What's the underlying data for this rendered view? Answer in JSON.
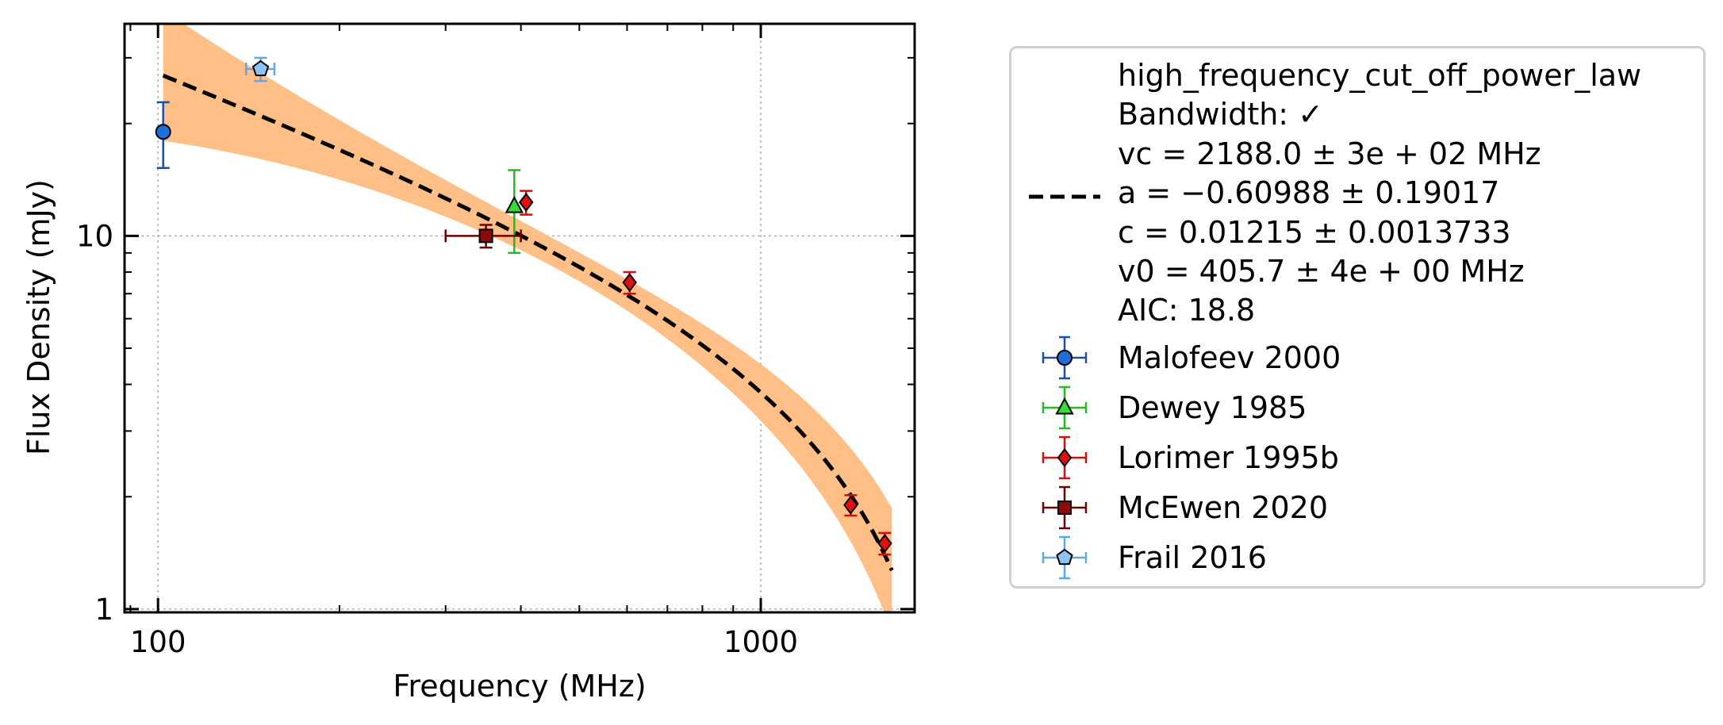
{
  "chart_data": {
    "type": "scatter",
    "xlabel": "Frequency (MHz)",
    "ylabel": "Flux Density (mJy)",
    "xscale": "log",
    "yscale": "log",
    "xlim": [
      88,
      1800
    ],
    "ylim": [
      0.98,
      37
    ],
    "xticks": [
      {
        "value": 100,
        "label": "100"
      },
      {
        "value": 1000,
        "label": "1000"
      }
    ],
    "yticks": [
      {
        "value": 1,
        "label": "1"
      },
      {
        "value": 10,
        "label": "10"
      }
    ],
    "grid": true,
    "legend_position": "outside-right",
    "fit": {
      "model": "high_frequency_cut_off_power_law",
      "lines": [
        "high_frequency_cut_off_power_law",
        "Bandwidth: ✓",
        "vc = 2188.0 ± 3e + 02 MHz",
        "a = −0.60988 ± 0.19017",
        "c = 0.01215 ± 0.0013733",
        "v0 = 405.7 ± 4e + 00 MHz",
        "AIC: 18.8"
      ],
      "params": {
        "vc": 2188.0,
        "a": -0.60988,
        "c": 0.01215,
        "v0": 405.7
      },
      "x_range": [
        102,
        1650
      ],
      "line_color": "#000000",
      "band_color": "#ffbf86"
    },
    "series": [
      {
        "name": "Malofeev 2000",
        "marker": "circle",
        "color": "#1f6fd8",
        "edge": "#1f4fa0",
        "points": [
          {
            "x": 102,
            "y": 19.0,
            "ylo": 15.2,
            "yhi": 22.8
          }
        ]
      },
      {
        "name": "Dewey 1985",
        "marker": "triangle",
        "color": "#33dd33",
        "edge": "#22bb22",
        "points": [
          {
            "x": 390,
            "y": 12.0,
            "ylo": 9.0,
            "yhi": 15.0
          }
        ]
      },
      {
        "name": "Lorimer 1995b",
        "marker": "diamond",
        "color": "#e01010",
        "edge": "#d01010",
        "points": [
          {
            "x": 408,
            "y": 12.3,
            "ylo": 11.4,
            "yhi": 13.2
          },
          {
            "x": 606,
            "y": 7.5,
            "ylo": 7.0,
            "yhi": 8.0
          },
          {
            "x": 1410,
            "y": 1.9,
            "ylo": 1.78,
            "yhi": 2.02
          },
          {
            "x": 1606,
            "y": 1.5,
            "ylo": 1.4,
            "yhi": 1.6
          }
        ]
      },
      {
        "name": "McEwen 2020",
        "marker": "square",
        "color": "#8b0a0a",
        "edge": "#6b0000",
        "points": [
          {
            "x": 350,
            "y": 10.0,
            "ylo": 9.3,
            "yhi": 10.7,
            "xlo": 300,
            "xhi": 400
          }
        ]
      },
      {
        "name": "Frail 2016",
        "marker": "pentagon",
        "color": "#8ec3f0",
        "edge": "#5fa8e8",
        "points": [
          {
            "x": 148,
            "y": 28.0,
            "ylo": 26.0,
            "yhi": 30.0,
            "xlo": 140,
            "xhi": 156
          }
        ]
      }
    ]
  }
}
